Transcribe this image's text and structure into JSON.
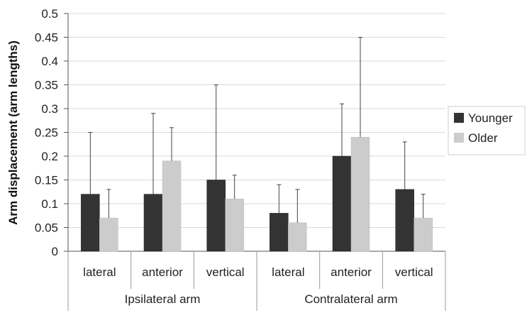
{
  "chart_data": {
    "type": "bar",
    "ylabel": "Arm displacement (arm lengths)",
    "ylim": [
      0,
      0.5
    ],
    "yticks": [
      "0",
      "0.05",
      "0.1",
      "0.15",
      "0.2",
      "0.25",
      "0.3",
      "0.35",
      "0.4",
      "0.45",
      "0.5"
    ],
    "grid": true,
    "legend_position": "right",
    "categories": [
      "lateral",
      "anterior",
      "vertical",
      "lateral",
      "anterior",
      "vertical"
    ],
    "groups": [
      {
        "label": "Ipsilateral arm",
        "categories": [
          0,
          1,
          2
        ]
      },
      {
        "label": "Contralateral arm",
        "categories": [
          3,
          4,
          5
        ]
      }
    ],
    "series": [
      {
        "name": "Younger",
        "color": "#333333",
        "values": [
          0.12,
          0.12,
          0.15,
          0.08,
          0.2,
          0.13
        ],
        "error_upper": [
          0.25,
          0.29,
          0.35,
          0.14,
          0.31,
          0.23
        ]
      },
      {
        "name": "Older",
        "color": "#cccccc",
        "values": [
          0.07,
          0.19,
          0.11,
          0.06,
          0.24,
          0.07
        ],
        "error_upper": [
          0.13,
          0.26,
          0.16,
          0.13,
          0.45,
          0.12
        ]
      }
    ]
  }
}
